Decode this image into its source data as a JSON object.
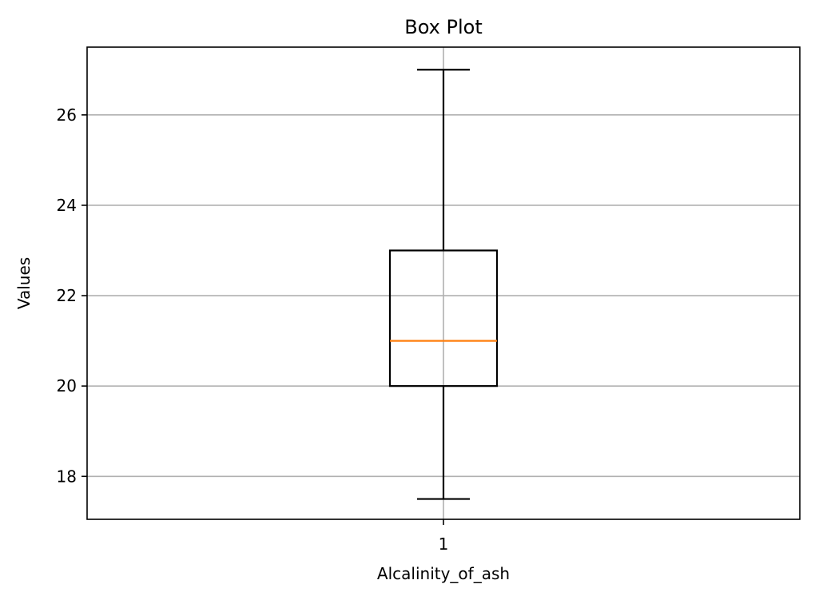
{
  "chart_data": {
    "type": "box",
    "title": "Box Plot",
    "xlabel": "Alcalinity_of_ash",
    "ylabel": "Values",
    "categories": [
      "1"
    ],
    "boxes": [
      {
        "category": "1",
        "whisker_low": 17.5,
        "q1": 20.0,
        "median": 21.0,
        "q3": 23.0,
        "whisker_high": 27.0
      }
    ],
    "ylim": [
      17.05,
      27.5
    ],
    "yticks": [
      18,
      20,
      22,
      24,
      26
    ],
    "grid": true,
    "colors": {
      "box": "#000000",
      "median": "#ff7f0e",
      "grid": "#b0b0b0"
    }
  }
}
